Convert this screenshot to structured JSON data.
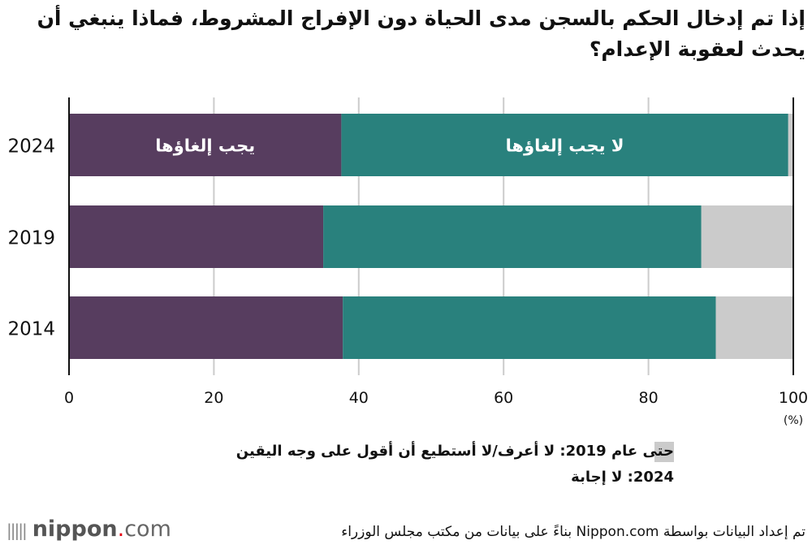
{
  "title": "إذا تم إدخال الحكم بالسجن مدى الحياة دون الإفراج المشروط، فماذا ينبغي أن يحدث لعقوبة الإعدام؟",
  "chart_data": {
    "type": "bar",
    "orientation": "horizontal",
    "stacked": true,
    "categories": [
      "2024",
      "2019",
      "2014"
    ],
    "series": [
      {
        "name": "يجب إلغاؤها",
        "values": [
          37.6,
          35.1,
          37.8
        ],
        "color": "#573d5f"
      },
      {
        "name": "لا يجب إلغاؤها",
        "values": [
          61.7,
          52.2,
          51.5
        ],
        "color": "#29817d"
      },
      {
        "name": "حتى عام 2019: لا أعرف/لا أستطيع أن أقول على وجه اليقين 2024: لا إجابة",
        "values": [
          0.7,
          12.7,
          10.7
        ],
        "color": "#cbcbcb"
      }
    ],
    "series_labels_shown_on": "2024",
    "xlim": [
      0,
      100
    ],
    "xticks": [
      "0",
      "20",
      "40",
      "60",
      "80",
      "100"
    ],
    "xunit": "(%)",
    "grid": true
  },
  "legend": {
    "line1": "حتى عام 2019: لا أعرف/لا أستطيع أن أقول على وجه اليقين",
    "line2": "2024: لا إجابة"
  },
  "footer": {
    "logo": "nippon.com",
    "source": "تم إعداد البيانات بواسطة Nippon.com بناءً على بيانات من مكتب مجلس الوزراء"
  }
}
